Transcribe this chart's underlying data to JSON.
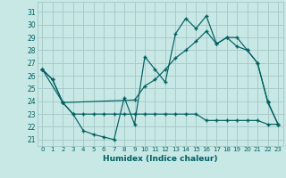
{
  "xlabel": "Humidex (Indice chaleur)",
  "bg_color": "#c8e8e6",
  "grid_color": "#a8cccb",
  "line_color": "#006060",
  "ylim": [
    20.5,
    31.8
  ],
  "xlim": [
    -0.5,
    23.5
  ],
  "x_ticks": [
    0,
    1,
    2,
    3,
    4,
    5,
    6,
    7,
    8,
    9,
    10,
    11,
    12,
    13,
    14,
    15,
    16,
    17,
    18,
    19,
    20,
    21,
    22,
    23
  ],
  "y_ticks": [
    21,
    22,
    23,
    24,
    25,
    26,
    27,
    28,
    29,
    30,
    31
  ],
  "series1_x": [
    0,
    1,
    2,
    3,
    4,
    5,
    6,
    7,
    8,
    9,
    10,
    11,
    12,
    13,
    14,
    15,
    16,
    17,
    18,
    19,
    20,
    21,
    22,
    23
  ],
  "series1_y": [
    26.5,
    25.7,
    23.9,
    23.0,
    21.7,
    21.4,
    21.2,
    21.0,
    24.3,
    22.2,
    27.5,
    26.5,
    25.5,
    29.3,
    30.5,
    29.7,
    30.7,
    28.5,
    29.0,
    28.3,
    28.0,
    27.0,
    23.9,
    22.2
  ],
  "series2_x": [
    0,
    1,
    2,
    3,
    4,
    5,
    6,
    7,
    8,
    9,
    10,
    11,
    12,
    13,
    14,
    15,
    16,
    17,
    18,
    19,
    20,
    21,
    22,
    23
  ],
  "series2_y": [
    26.5,
    25.7,
    23.9,
    23.0,
    23.0,
    23.0,
    23.0,
    23.0,
    23.0,
    23.0,
    23.0,
    23.0,
    23.0,
    23.0,
    23.0,
    23.0,
    22.5,
    22.5,
    22.5,
    22.5,
    22.5,
    22.5,
    22.2,
    22.2
  ],
  "series3_x": [
    0,
    2,
    9,
    10,
    11,
    12,
    13,
    14,
    15,
    16,
    17,
    18,
    19,
    20,
    21,
    22,
    23
  ],
  "series3_y": [
    26.5,
    23.9,
    24.1,
    25.2,
    25.7,
    26.5,
    27.4,
    28.0,
    28.7,
    29.5,
    28.5,
    29.0,
    29.0,
    28.0,
    27.0,
    24.0,
    22.2
  ]
}
